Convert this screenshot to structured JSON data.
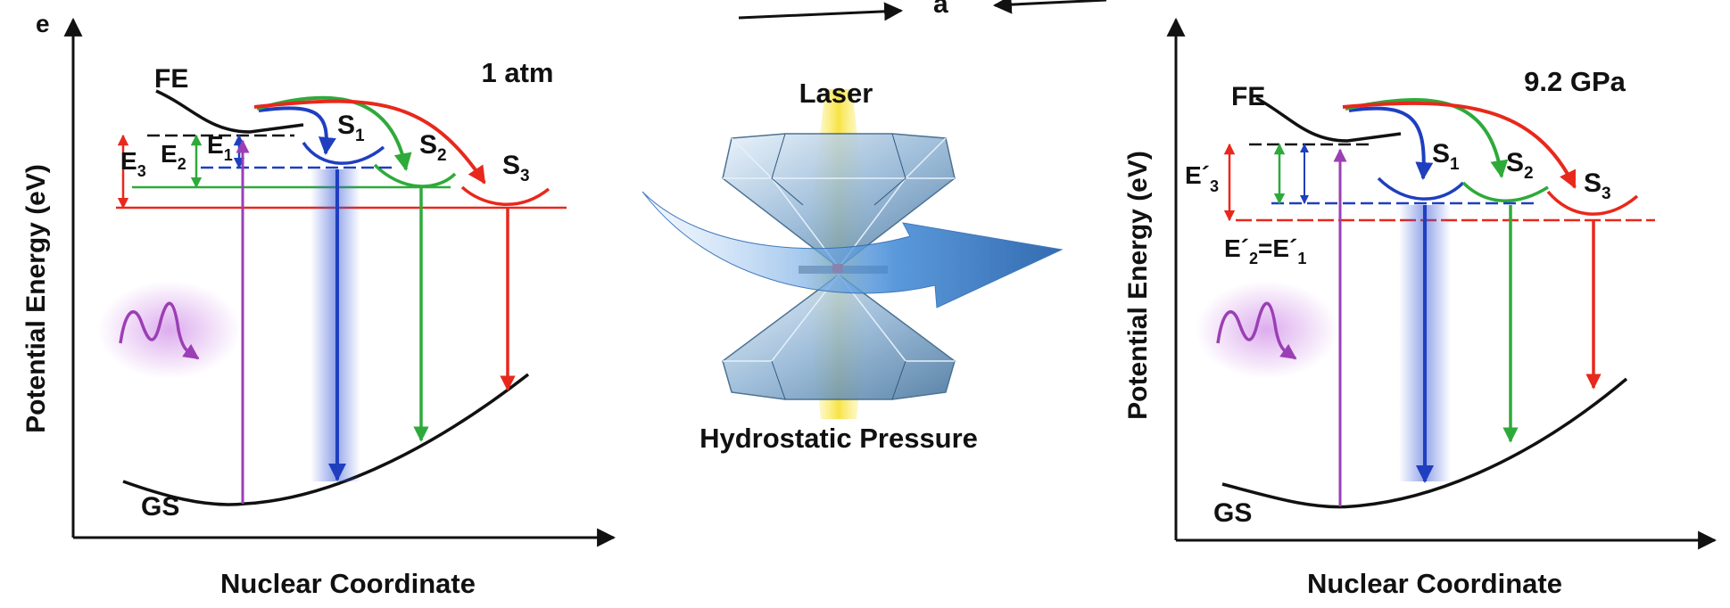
{
  "panel_letter": "e",
  "top_label": "a",
  "left": {
    "condition": "1 atm",
    "ylabel": "Potential Energy (eV)",
    "xlabel": "Nuclear Coordinate",
    "fe": "FE",
    "gs": "GS",
    "s1": "S",
    "s1_sub": "1",
    "s2": "S",
    "s2_sub": "2",
    "s3": "S",
    "s3_sub": "3",
    "e1": "E",
    "e1_sub": "1",
    "e2": "E",
    "e2_sub": "2",
    "e3": "E",
    "e3_sub": "3"
  },
  "right": {
    "condition": "9.2 GPa",
    "ylabel": "Potential Energy (eV)",
    "xlabel": "Nuclear Coordinate",
    "fe": "FE",
    "gs": "GS",
    "s1": "S",
    "s1_sub": "1",
    "s2": "S",
    "s2_sub": "2",
    "s3": "S",
    "s3_sub": "3",
    "e3p": "E´",
    "e3p_sub": "3",
    "e2e1_a": "E´",
    "e2e1_a_sub": "2",
    "e2e1_b": "=E´",
    "e2e1_b_sub": "1"
  },
  "center": {
    "laser": "Laser",
    "pressure": "Hydrostatic Pressure"
  },
  "colors": {
    "s1": "#1f3fbf",
    "s2": "#2eaa3a",
    "s3": "#e8281c",
    "excite": "#9b3fb5",
    "axis": "#111111"
  },
  "icons": [
    "wavy-photon-icon",
    "diamond-anvil-cell-icon",
    "pressure-arrow-icon"
  ]
}
